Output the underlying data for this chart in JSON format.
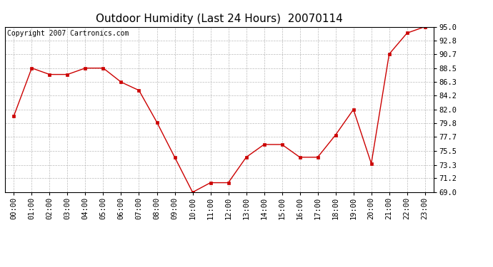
{
  "title": "Outdoor Humidity (Last 24 Hours)  20070114",
  "copyright_text": "Copyright 2007 Cartronics.com",
  "x_labels": [
    "00:00",
    "01:00",
    "02:00",
    "03:00",
    "04:00",
    "05:00",
    "06:00",
    "07:00",
    "08:00",
    "09:00",
    "10:00",
    "11:00",
    "12:00",
    "13:00",
    "14:00",
    "15:00",
    "16:00",
    "17:00",
    "18:00",
    "19:00",
    "20:00",
    "21:00",
    "22:00",
    "23:00"
  ],
  "y_values": [
    81.0,
    88.5,
    87.5,
    87.5,
    88.5,
    88.5,
    86.3,
    85.0,
    80.0,
    74.5,
    69.0,
    70.5,
    70.5,
    74.5,
    76.5,
    76.5,
    74.5,
    74.5,
    78.0,
    82.0,
    73.5,
    90.7,
    94.0,
    95.0
  ],
  "ylim_min": 69.0,
  "ylim_max": 95.0,
  "yticks": [
    69.0,
    71.2,
    73.3,
    75.5,
    77.7,
    79.8,
    82.0,
    84.2,
    86.3,
    88.5,
    90.7,
    92.8,
    95.0
  ],
  "line_color": "#cc0000",
  "marker": "s",
  "marker_size": 3,
  "bg_color": "#ffffff",
  "plot_bg_color": "#ffffff",
  "grid_color": "#aaaaaa",
  "title_fontsize": 11,
  "tick_fontsize": 7.5,
  "copyright_fontsize": 7
}
